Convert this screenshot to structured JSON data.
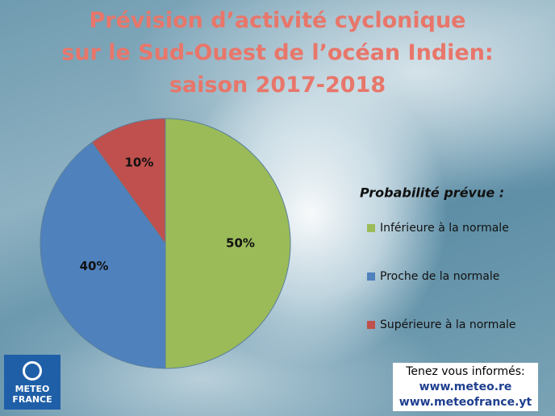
{
  "chart_data": {
    "type": "pie",
    "title": "Prévision d’activité cyclonique\nsur le Sud-Ouest de l’océan Indien:\nsaison 2017-2018",
    "legend_title": "Probabilité prévue :",
    "series": [
      {
        "name": "Inférieure à la normale",
        "color": "#9bbb59"
      },
      {
        "name": "Proche de la normale",
        "color": "#4f81bd"
      },
      {
        "name": "Supérieure à la normale",
        "color": "#c0504d"
      }
    ],
    "values": [
      50,
      40,
      10
    ],
    "value_labels": [
      "50%",
      "40%",
      "10%"
    ],
    "legend": "right"
  },
  "logo": {
    "line1": "METEO",
    "line2": "FRANCE"
  },
  "info": {
    "text": "Tenez vous informés:",
    "link1": "www.meteo.re",
    "link2": "www.meteofrance.yt"
  }
}
